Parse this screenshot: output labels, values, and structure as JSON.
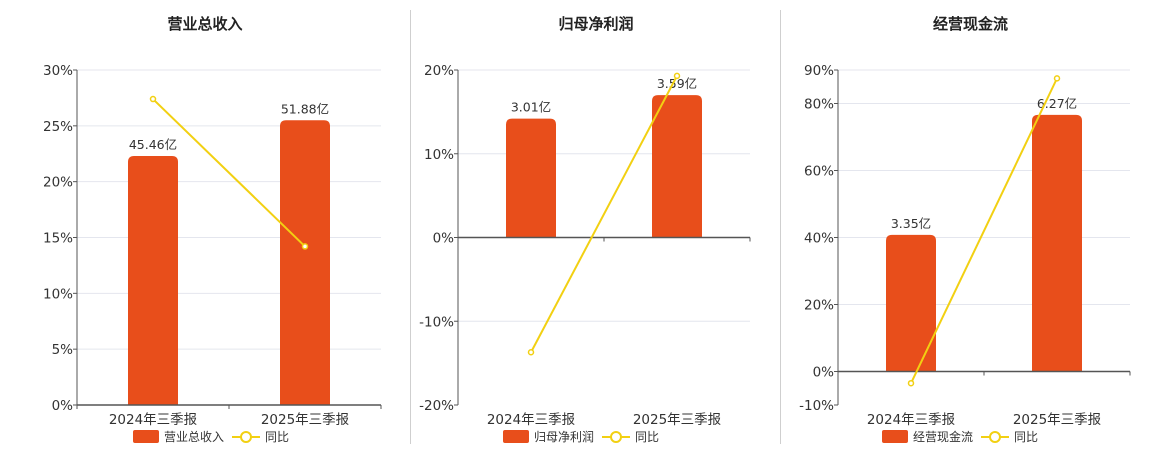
{
  "colors": {
    "bar": "#e84e1b",
    "line": "#f2d012",
    "grid": "#e4e6ee",
    "axis": "#555555"
  },
  "chart_data": [
    {
      "type": "bar",
      "title": "营业总收入",
      "categories": [
        "2024年三季报",
        "2025年三季报"
      ],
      "series": [
        {
          "name": "营业总收入",
          "values": [
            22.3,
            25.5
          ],
          "labels": [
            "45.46亿",
            "51.88亿"
          ]
        },
        {
          "name": "同比",
          "type": "line",
          "values": [
            27.4,
            14.2
          ]
        }
      ],
      "ylim": [
        0,
        30
      ],
      "yticks": [
        0,
        5,
        10,
        15,
        20,
        25,
        30
      ],
      "yticklabels": [
        "0%",
        "5%",
        "10%",
        "15%",
        "20%",
        "25%",
        "30%"
      ],
      "grid": true,
      "legend": "bottom"
    },
    {
      "type": "bar",
      "title": "归母净利润",
      "categories": [
        "2024年三季报",
        "2025年三季报"
      ],
      "series": [
        {
          "name": "归母净利润",
          "values": [
            14.2,
            17.0
          ],
          "labels": [
            "3.01亿",
            "3.59亿"
          ]
        },
        {
          "name": "同比",
          "type": "line",
          "values": [
            -13.7,
            19.3
          ]
        }
      ],
      "ylim": [
        -20,
        20
      ],
      "yticks": [
        -20,
        -10,
        0,
        10,
        20
      ],
      "yticklabels": [
        "-20%",
        "-10%",
        "0%",
        "10%",
        "20%"
      ],
      "grid": true,
      "legend": "bottom"
    },
    {
      "type": "bar",
      "title": "经营现金流",
      "categories": [
        "2024年三季报",
        "2025年三季报"
      ],
      "series": [
        {
          "name": "经营现金流",
          "values": [
            40.8,
            76.6
          ],
          "labels": [
            "3.35亿",
            "6.27亿"
          ]
        },
        {
          "name": "同比",
          "type": "line",
          "values": [
            -3.5,
            87.5
          ]
        }
      ],
      "ylim": [
        -10,
        90
      ],
      "yticks": [
        -10,
        0,
        20,
        40,
        60,
        80,
        90
      ],
      "yticklabels": [
        "-10%",
        "0%",
        "20%",
        "40%",
        "60%",
        "80%",
        "90%"
      ],
      "grid": true,
      "legend": "bottom"
    }
  ]
}
